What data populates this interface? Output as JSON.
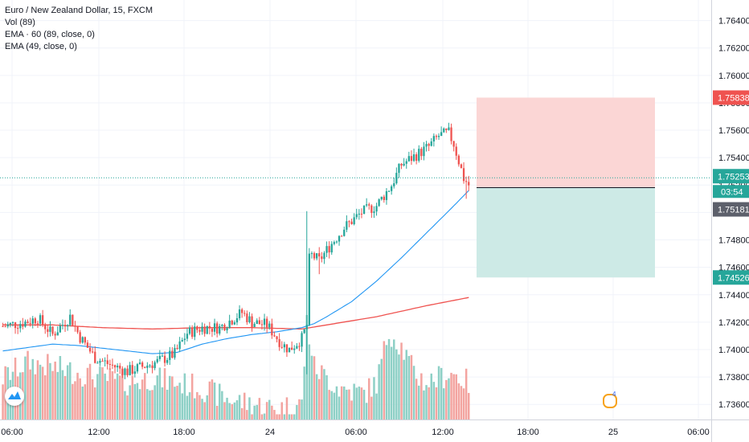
{
  "legend": {
    "symbol": "Euro / New Zealand Dollar, 15, FXCM",
    "vol": "Vol (89)",
    "ema1": "EMA · 60 (89, close, 0)",
    "ema2": "EMA (49, close, 0)"
  },
  "event_marker": "4",
  "colors": {
    "up": "#26a69a",
    "down": "#ef5350",
    "up_vol": "#8ed0c6",
    "down_vol": "#f3a4a0",
    "ema_fast": "#2196f3",
    "ema_slow": "#ef5350",
    "sl_zone": "#fbd6d5",
    "tp_zone": "#cdeae6",
    "price_tag": "#26a69a",
    "sl_tag": "#ef5350"
  },
  "chart_data": {
    "type": "candlestick",
    "y_ticks": [
      "1.73600",
      "1.73800",
      "1.74000",
      "1.74200",
      "1.74400",
      "1.74600",
      "1.74800",
      "1.75000",
      "1.75200",
      "1.75400",
      "1.75600",
      "1.75800",
      "1.76000",
      "1.76200",
      "1.76400"
    ],
    "x_ticks": [
      "06:00",
      "12:00",
      "18:00",
      "24",
      "06:00",
      "12:00",
      "18:00",
      "25",
      "06:00"
    ],
    "ylim": [
      1.7349,
      1.7655
    ],
    "price_labels": {
      "stop_loss": "1.75838",
      "current": "1.75253",
      "countdown": "03:54",
      "entry": "1.75181",
      "take_profit": "1.74526"
    },
    "position": {
      "entry": 1.75181,
      "stop_loss": 1.75838,
      "take_profit": 1.74526,
      "current_price": 1.75253
    },
    "ohlc_waypoints": {
      "close": [
        [
          0,
          1.7417
        ],
        [
          9,
          1.742
        ],
        [
          14,
          1.7423
        ],
        [
          20,
          1.7411
        ],
        [
          27,
          1.7424
        ],
        [
          31,
          1.7409
        ],
        [
          37,
          1.7394
        ],
        [
          43,
          1.7389
        ],
        [
          50,
          1.7384
        ],
        [
          55,
          1.7387
        ],
        [
          62,
          1.7391
        ],
        [
          69,
          1.7397
        ],
        [
          74,
          1.7412
        ],
        [
          80,
          1.7416
        ],
        [
          87,
          1.7416
        ],
        [
          96,
          1.7427
        ],
        [
          100,
          1.742
        ],
        [
          106,
          1.7418
        ],
        [
          112,
          1.7404
        ],
        [
          115,
          1.74
        ],
        [
          120,
          1.7408
        ],
        [
          122,
          1.7418
        ],
        [
          123,
          1.747
        ],
        [
          127,
          1.7465
        ],
        [
          131,
          1.7475
        ],
        [
          137,
          1.7489
        ],
        [
          144,
          1.75
        ],
        [
          150,
          1.7505
        ],
        [
          156,
          1.752
        ],
        [
          160,
          1.7535
        ],
        [
          166,
          1.7542
        ],
        [
          171,
          1.7548
        ],
        [
          175,
          1.7556
        ],
        [
          179,
          1.7558
        ],
        [
          181,
          1.755
        ],
        [
          185,
          1.7525
        ],
        [
          187,
          1.752
        ]
      ]
    },
    "ema_fast_waypoints": [
      [
        0,
        1.7399
      ],
      [
        12,
        1.7402
      ],
      [
        20,
        1.7404
      ],
      [
        30,
        1.7403
      ],
      [
        40,
        1.7401
      ],
      [
        50,
        1.7399
      ],
      [
        60,
        1.7397
      ],
      [
        70,
        1.7398
      ],
      [
        80,
        1.7404
      ],
      [
        90,
        1.7408
      ],
      [
        100,
        1.7411
      ],
      [
        110,
        1.7413
      ],
      [
        120,
        1.7416
      ],
      [
        125,
        1.7419
      ],
      [
        130,
        1.7424
      ],
      [
        140,
        1.7435
      ],
      [
        150,
        1.745
      ],
      [
        160,
        1.7467
      ],
      [
        170,
        1.7485
      ],
      [
        180,
        1.7503
      ],
      [
        187,
        1.7516
      ]
    ],
    "ema_slow_waypoints": [
      [
        0,
        1.7418
      ],
      [
        20,
        1.7418
      ],
      [
        40,
        1.7416
      ],
      [
        60,
        1.7415
      ],
      [
        80,
        1.7416
      ],
      [
        100,
        1.7416
      ],
      [
        120,
        1.7415
      ],
      [
        130,
        1.7418
      ],
      [
        150,
        1.7424
      ],
      [
        170,
        1.7432
      ],
      [
        187,
        1.7438
      ]
    ],
    "volume_waypoints": [
      [
        0,
        0.4
      ],
      [
        10,
        0.55
      ],
      [
        20,
        0.5
      ],
      [
        30,
        0.45
      ],
      [
        40,
        0.4
      ],
      [
        50,
        0.35
      ],
      [
        60,
        0.4
      ],
      [
        70,
        0.35
      ],
      [
        80,
        0.3
      ],
      [
        90,
        0.2
      ],
      [
        100,
        0.15
      ],
      [
        110,
        0.1
      ],
      [
        120,
        0.15
      ],
      [
        122,
        0.95
      ],
      [
        125,
        0.5
      ],
      [
        135,
        0.3
      ],
      [
        145,
        0.25
      ],
      [
        150,
        0.35
      ],
      [
        155,
        0.85
      ],
      [
        160,
        0.7
      ],
      [
        165,
        0.45
      ],
      [
        170,
        0.35
      ],
      [
        175,
        0.4
      ],
      [
        180,
        0.45
      ],
      [
        187,
        0.35
      ]
    ]
  }
}
